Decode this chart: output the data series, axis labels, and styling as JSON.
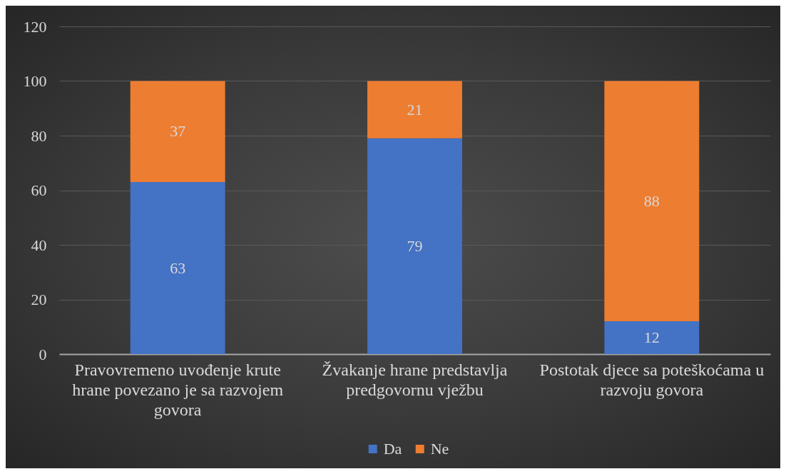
{
  "chart_data": {
    "type": "bar",
    "categories": [
      "Pravovremeno uvođenje krute hrane povezano je sa razvojem govora",
      "Žvakanje hrane predstavlja predgovornu vježbu",
      "Postotak djece sa poteškoćama u razvoju govora"
    ],
    "series": [
      {
        "name": "Da",
        "color": "#4472c4",
        "values": [
          63,
          79,
          12
        ]
      },
      {
        "name": "Ne",
        "color": "#ed7d31",
        "values": [
          37,
          21,
          88
        ]
      }
    ],
    "stacked": true,
    "ylim": [
      0,
      120
    ],
    "yticks": [
      0,
      20,
      40,
      60,
      80,
      100,
      120
    ],
    "grid": "y",
    "legend": "bottom",
    "data_labels": true
  }
}
